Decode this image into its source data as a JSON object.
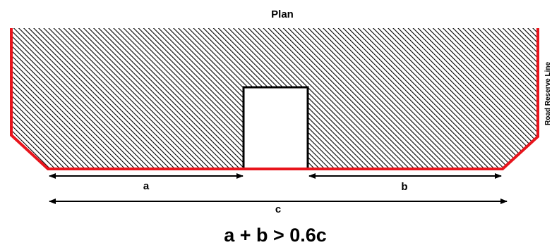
{
  "title": "Plan",
  "side_label": "Road Reserve Line",
  "dimensions": {
    "a": "a",
    "b": "b",
    "c": "c"
  },
  "formula": "a + b > 0.6c",
  "colors": {
    "boundary": "#e8141c",
    "hatch": "#000000",
    "outline": "#000000"
  }
}
